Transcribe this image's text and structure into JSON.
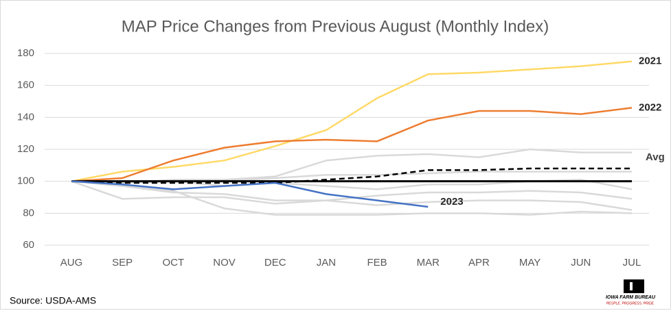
{
  "chart_data": {
    "type": "line",
    "title": "MAP Price Changes from Previous August (Monthly Index)",
    "categories": [
      "AUG",
      "SEP",
      "OCT",
      "NOV",
      "DEC",
      "JAN",
      "FEB",
      "MAR",
      "APR",
      "MAY",
      "JUN",
      "JUL"
    ],
    "ylim": [
      60,
      180
    ],
    "yticks": [
      60,
      80,
      100,
      120,
      140,
      160,
      180
    ],
    "grid": true,
    "series": [
      {
        "color": "#d9d9d9",
        "values": [
          100,
          89,
          90,
          90,
          86,
          88,
          91,
          93,
          93,
          94,
          93,
          89
        ]
      },
      {
        "color": "#d9d9d9",
        "values": [
          100,
          99,
          101,
          101,
          103,
          113,
          116,
          117,
          115,
          120,
          118,
          118
        ]
      },
      {
        "color": "#d9d9d9",
        "values": [
          100,
          98,
          94,
          83,
          79,
          79,
          79,
          80,
          80,
          79,
          81,
          80
        ]
      },
      {
        "color": "#d9d9d9",
        "values": [
          100,
          99,
          100,
          100,
          102,
          104,
          104,
          105,
          106,
          106,
          106,
          106
        ]
      },
      {
        "color": "#d9d9d9",
        "values": [
          100,
          97,
          93,
          92,
          88,
          88,
          85,
          87,
          88,
          88,
          87,
          82
        ]
      },
      {
        "color": "#d9d9d9",
        "values": [
          100,
          100,
          100,
          97,
          99,
          97,
          95,
          98,
          98,
          100,
          101,
          95
        ]
      },
      {
        "name": "2021",
        "color": "#ffd966",
        "values": [
          100,
          106,
          109,
          113,
          122,
          132,
          152,
          167,
          168,
          170,
          172,
          175
        ]
      },
      {
        "name": "2022",
        "color": "#ed7d31",
        "values": [
          100,
          102,
          113,
          121,
          125,
          126,
          125,
          138,
          144,
          144,
          142,
          146
        ]
      },
      {
        "name": "Avg",
        "color": "#000000",
        "dashed": true,
        "values": [
          100,
          99,
          99,
          99,
          99,
          101,
          103,
          107,
          107,
          108,
          108,
          108
        ]
      },
      {
        "color": "#000000",
        "values": [
          100,
          100,
          100,
          100,
          100,
          100,
          100,
          100,
          100,
          100,
          100,
          100
        ]
      },
      {
        "name": "2023",
        "color": "#4472c4",
        "values": [
          100,
          98,
          95,
          97,
          99,
          92,
          88,
          84,
          null,
          null,
          null,
          null
        ]
      }
    ],
    "source": "Source: USDA-AMS",
    "logo": {
      "name": "IOWA FARM BUREAU",
      "tagline": "PEOPLE. PROGRESS. PRIDE."
    }
  }
}
